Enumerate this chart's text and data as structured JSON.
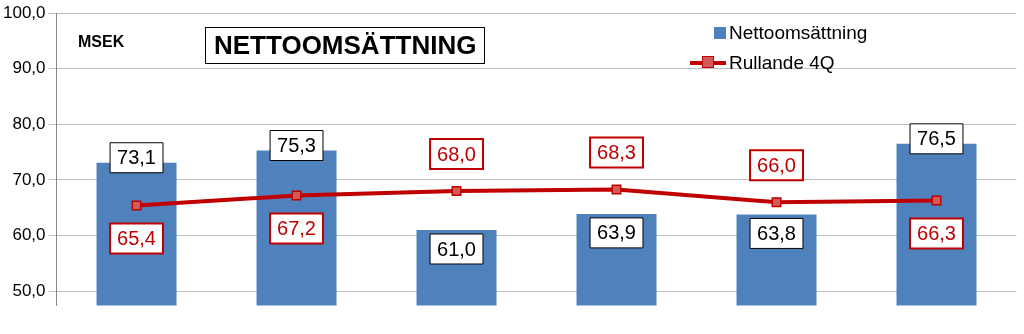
{
  "chart_data": {
    "type": "bar",
    "title": "NETTOOMSÄTTNING",
    "ylabel": "MSEK",
    "categories": [
      null,
      null,
      null,
      null,
      null,
      null
    ],
    "series": [
      {
        "name": "Nettoomsättning",
        "color": "#4f81bd",
        "values": [
          73.1,
          75.3,
          61.0,
          63.9,
          63.8,
          76.5
        ],
        "value_labels": [
          "73,1",
          "75,3",
          "61,0",
          "63,9",
          "63,8",
          "76,5"
        ]
      },
      {
        "name": "Rullande 4Q",
        "type": "line",
        "color": "#c00000",
        "marker": "square",
        "values": [
          65.4,
          67.2,
          68.0,
          68.3,
          66.0,
          66.3
        ],
        "value_labels": [
          "65,4",
          "67,2",
          "68,0",
          "68,3",
          "66,0",
          "66,3"
        ]
      }
    ],
    "ylim": [
      47.4,
      100
    ],
    "yticks": [
      {
        "value": 50,
        "label": "50,0"
      },
      {
        "value": 60,
        "label": "60,0"
      },
      {
        "value": 70,
        "label": "70,0"
      },
      {
        "value": 80,
        "label": "80,0"
      },
      {
        "value": 90,
        "label": "90,0"
      },
      {
        "value": 100,
        "label": "100,0"
      }
    ],
    "grid": "y",
    "legend": "top right"
  }
}
